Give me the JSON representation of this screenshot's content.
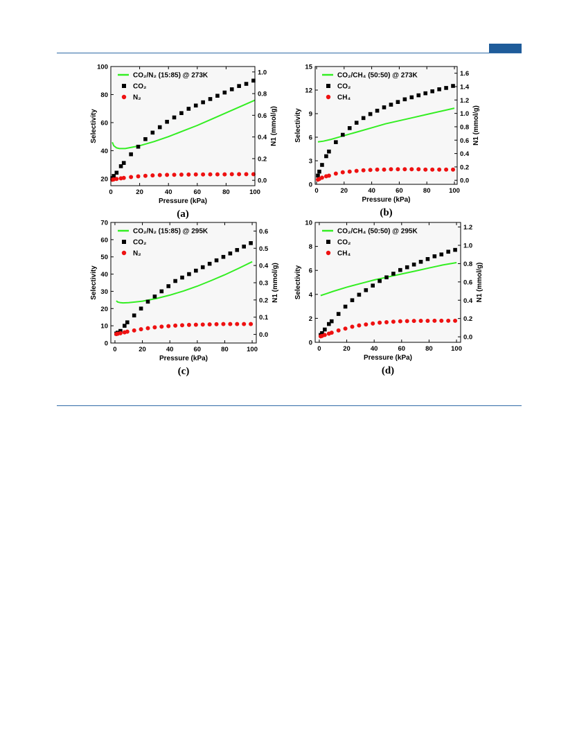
{
  "colors": {
    "rule": "#2e6aa6",
    "tab": "#1f5c9a",
    "selectivity_line": "#33ee22",
    "co2_marker": "#000000",
    "second_gas_marker": "#ee1111"
  },
  "chart_data": [
    {
      "type": "line+scatter",
      "panel_label": "(a)",
      "xlabel": "Pressure (kPa)",
      "ylabel": "Selectivity",
      "y2label": "N1 (mmol/g)",
      "xlim": [
        0,
        100
      ],
      "ylim": [
        15,
        100
      ],
      "y2lim": [
        -0.05,
        1.05
      ],
      "xticks": [
        0,
        20,
        40,
        60,
        80,
        100
      ],
      "yticks": [
        20,
        40,
        60,
        80,
        100
      ],
      "y2ticks": [
        0.0,
        0.2,
        0.4,
        0.6,
        0.8,
        1.0
      ],
      "legend_position": "top-left",
      "series": [
        {
          "name": "CO2/N2 (15:85) @ 273K",
          "name_sub": "CO₂/N₂ (15:85) @ 273K",
          "kind": "line",
          "axis": "left",
          "x": [
            1,
            2,
            4,
            6,
            10,
            15,
            20,
            30,
            40,
            50,
            60,
            70,
            80,
            90,
            100
          ],
          "y": [
            46,
            43.5,
            42,
            41.5,
            41.5,
            42.5,
            43.5,
            46.5,
            50,
            54,
            58,
            62.5,
            67,
            71.5,
            76
          ]
        },
        {
          "name": "CO2",
          "name_sub": "CO₂",
          "kind": "square",
          "axis": "right",
          "x": [
            1,
            2,
            4,
            7,
            9,
            14,
            19,
            24,
            29,
            34,
            39,
            44,
            49,
            54,
            59,
            64,
            69,
            74,
            79,
            84,
            89,
            94,
            99
          ],
          "y": [
            0.02,
            0.04,
            0.07,
            0.13,
            0.16,
            0.24,
            0.31,
            0.38,
            0.44,
            0.49,
            0.54,
            0.58,
            0.62,
            0.66,
            0.69,
            0.72,
            0.75,
            0.78,
            0.81,
            0.84,
            0.87,
            0.89,
            0.92
          ]
        },
        {
          "name": "N2",
          "name_sub": "N₂",
          "kind": "circle",
          "axis": "right",
          "x": [
            1,
            2,
            4,
            7,
            9,
            14,
            19,
            24,
            29,
            34,
            39,
            44,
            49,
            54,
            59,
            64,
            69,
            74,
            79,
            84,
            89,
            94,
            99
          ],
          "y": [
            0.005,
            0.008,
            0.012,
            0.018,
            0.022,
            0.03,
            0.036,
            0.041,
            0.045,
            0.048,
            0.05,
            0.051,
            0.052,
            0.053,
            0.054,
            0.054,
            0.055,
            0.055,
            0.055,
            0.056,
            0.056,
            0.056,
            0.056
          ]
        }
      ]
    },
    {
      "type": "line+scatter",
      "panel_label": "(b)",
      "xlabel": "Pressure (kPa)",
      "ylabel": "Selectivity",
      "y2label": "N1 (mmol/g)",
      "xlim": [
        -1,
        102
      ],
      "ylim": [
        0,
        15
      ],
      "y2lim": [
        -0.06,
        1.7
      ],
      "xticks": [
        0,
        20,
        40,
        60,
        80,
        100
      ],
      "yticks": [
        0,
        3,
        6,
        9,
        12,
        15
      ],
      "y2ticks": [
        0.0,
        0.2,
        0.4,
        0.6,
        0.8,
        1.0,
        1.2,
        1.4,
        1.6
      ],
      "legend_position": "top-left",
      "series": [
        {
          "name": "CO2/CH4 (50:50) @ 273K",
          "name_sub": "CO₂/CH₄ (50:50) @ 273K",
          "kind": "line",
          "axis": "left",
          "x": [
            1,
            5,
            10,
            20,
            30,
            40,
            50,
            60,
            70,
            80,
            90,
            100
          ],
          "y": [
            5.4,
            5.5,
            5.7,
            6.2,
            6.7,
            7.2,
            7.7,
            8.1,
            8.5,
            8.9,
            9.3,
            9.7
          ]
        },
        {
          "name": "CO2",
          "name_sub": "CO₂",
          "kind": "square",
          "axis": "right",
          "x": [
            1,
            2,
            4,
            7,
            9,
            14,
            19,
            24,
            29,
            34,
            39,
            44,
            49,
            54,
            59,
            64,
            69,
            74,
            79,
            84,
            89,
            94,
            99
          ],
          "y": [
            0.07,
            0.13,
            0.23,
            0.36,
            0.43,
            0.57,
            0.68,
            0.78,
            0.86,
            0.93,
            0.99,
            1.04,
            1.09,
            1.13,
            1.17,
            1.21,
            1.24,
            1.27,
            1.3,
            1.33,
            1.36,
            1.38,
            1.41
          ]
        },
        {
          "name": "CH4",
          "name_sub": "CH₄",
          "kind": "circle",
          "axis": "right",
          "x": [
            1,
            2,
            4,
            7,
            9,
            14,
            19,
            24,
            29,
            34,
            39,
            44,
            49,
            54,
            59,
            64,
            69,
            74,
            79,
            84,
            89,
            94,
            99
          ],
          "y": [
            0.01,
            0.02,
            0.04,
            0.06,
            0.07,
            0.1,
            0.12,
            0.13,
            0.14,
            0.15,
            0.155,
            0.16,
            0.16,
            0.165,
            0.165,
            0.165,
            0.165,
            0.165,
            0.16,
            0.16,
            0.16,
            0.16,
            0.16
          ]
        }
      ]
    },
    {
      "type": "line+scatter",
      "panel_label": "(c)",
      "xlabel": "Pressure (kPa)",
      "ylabel": "Selectivity",
      "y2label": "N1 (mmol/g)",
      "xlim": [
        -3,
        103
      ],
      "ylim": [
        0,
        70
      ],
      "y2lim": [
        -0.05,
        0.65
      ],
      "xticks": [
        0,
        20,
        40,
        60,
        80,
        100
      ],
      "yticks": [
        0,
        10,
        20,
        30,
        40,
        50,
        60,
        70
      ],
      "y2ticks": [
        0.0,
        0.1,
        0.2,
        0.3,
        0.4,
        0.5,
        0.6
      ],
      "legend_position": "top-left",
      "series": [
        {
          "name": "CO2/N2 (15:85) @ 295K",
          "name_sub": "CO₂/N₂ (15:85) @ 295K",
          "kind": "line",
          "axis": "left",
          "x": [
            1,
            2,
            4,
            6,
            10,
            15,
            20,
            30,
            40,
            50,
            60,
            70,
            80,
            90,
            100
          ],
          "y": [
            24.5,
            23.8,
            23.4,
            23.3,
            23.4,
            23.8,
            24.3,
            25.8,
            27.8,
            30.2,
            33,
            36.2,
            39.6,
            43.3,
            47.2
          ]
        },
        {
          "name": "CO2",
          "name_sub": "CO₂",
          "kind": "square",
          "axis": "right",
          "x": [
            1,
            2,
            4,
            7,
            9,
            14,
            19,
            24,
            29,
            34,
            39,
            44,
            49,
            54,
            59,
            64,
            69,
            74,
            79,
            84,
            89,
            94,
            99
          ],
          "y": [
            0.005,
            0.01,
            0.02,
            0.05,
            0.07,
            0.11,
            0.15,
            0.19,
            0.22,
            0.25,
            0.28,
            0.31,
            0.33,
            0.35,
            0.37,
            0.39,
            0.41,
            0.43,
            0.45,
            0.47,
            0.49,
            0.51,
            0.53
          ]
        },
        {
          "name": "N2",
          "name_sub": "N₂",
          "kind": "circle",
          "axis": "right",
          "x": [
            1,
            2,
            4,
            7,
            9,
            14,
            19,
            24,
            29,
            34,
            39,
            44,
            49,
            54,
            59,
            64,
            69,
            74,
            79,
            84,
            89,
            94,
            99
          ],
          "y": [
            0.002,
            0.004,
            0.007,
            0.012,
            0.016,
            0.023,
            0.03,
            0.036,
            0.041,
            0.045,
            0.048,
            0.051,
            0.053,
            0.055,
            0.056,
            0.057,
            0.058,
            0.059,
            0.06,
            0.06,
            0.06,
            0.06,
            0.06
          ]
        }
      ]
    },
    {
      "type": "line+scatter",
      "panel_label": "(d)",
      "xlabel": "Pressure (kPa)",
      "ylabel": "Selectivity",
      "y2label": "N1 (mmol/g)",
      "xlim": [
        -3,
        103
      ],
      "ylim": [
        0,
        10
      ],
      "y2lim": [
        -0.06,
        1.25
      ],
      "xticks": [
        0,
        20,
        40,
        60,
        80,
        100
      ],
      "yticks": [
        0,
        2,
        4,
        6,
        8,
        10
      ],
      "y2ticks": [
        0.0,
        0.2,
        0.4,
        0.6,
        0.8,
        1.0,
        1.2
      ],
      "legend_position": "top-left",
      "series": [
        {
          "name": "CO2/CH4 (50:50) @ 295K",
          "name_sub": "CO₂/CH₄ (50:50) @ 295K",
          "kind": "line",
          "axis": "left",
          "x": [
            1,
            5,
            10,
            20,
            30,
            40,
            50,
            60,
            70,
            80,
            90,
            100
          ],
          "y": [
            3.9,
            4.05,
            4.25,
            4.6,
            4.9,
            5.2,
            5.45,
            5.7,
            5.95,
            6.2,
            6.45,
            6.65
          ]
        },
        {
          "name": "CO2",
          "name_sub": "CO₂",
          "kind": "square",
          "axis": "right",
          "x": [
            1,
            2,
            4,
            7,
            9,
            14,
            19,
            24,
            29,
            34,
            39,
            44,
            49,
            54,
            59,
            64,
            69,
            74,
            79,
            84,
            89,
            94,
            99
          ],
          "y": [
            0.02,
            0.04,
            0.08,
            0.14,
            0.17,
            0.25,
            0.33,
            0.4,
            0.46,
            0.51,
            0.56,
            0.61,
            0.65,
            0.69,
            0.73,
            0.76,
            0.79,
            0.82,
            0.85,
            0.88,
            0.9,
            0.93,
            0.95
          ]
        },
        {
          "name": "CH4",
          "name_sub": "CH₄",
          "kind": "circle",
          "axis": "right",
          "x": [
            1,
            2,
            4,
            7,
            9,
            14,
            19,
            24,
            29,
            34,
            39,
            44,
            49,
            54,
            59,
            64,
            69,
            74,
            79,
            84,
            89,
            94,
            99
          ],
          "y": [
            0.005,
            0.01,
            0.02,
            0.035,
            0.045,
            0.07,
            0.09,
            0.11,
            0.125,
            0.135,
            0.145,
            0.155,
            0.16,
            0.165,
            0.17,
            0.172,
            0.174,
            0.175,
            0.175,
            0.176,
            0.176,
            0.176,
            0.176
          ]
        }
      ]
    }
  ]
}
